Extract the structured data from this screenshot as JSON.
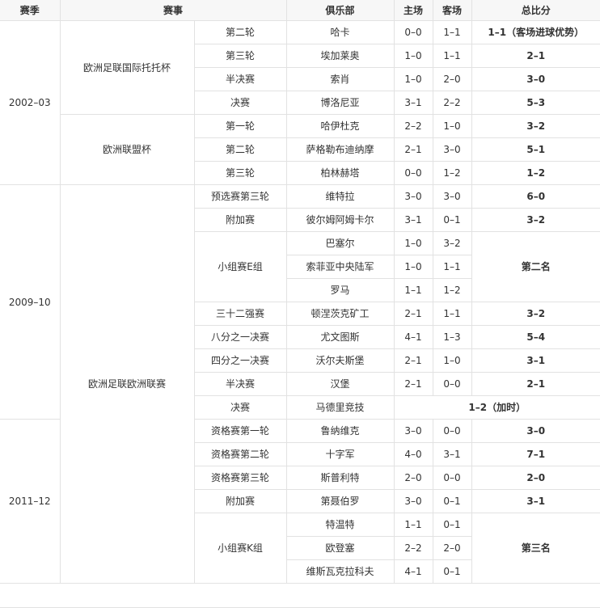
{
  "headers": {
    "season": "赛季",
    "competition": "赛事",
    "club": "俱乐部",
    "home": "主场",
    "away": "客场",
    "aggregate": "总比分"
  },
  "ties": [
    {
      "season": "2002–03",
      "competition": "欧洲足联国际托托杯",
      "round": "第二轮",
      "matches": [
        {
          "club": "哈卡",
          "home": "0–0",
          "away": "1–1"
        }
      ],
      "aggregate": "1–1（客场进球优势）"
    },
    {
      "season": "2002–03",
      "competition": "欧洲足联国际托托杯",
      "round": "第三轮",
      "matches": [
        {
          "club": "埃加莱奥",
          "home": "1–0",
          "away": "1–1"
        }
      ],
      "aggregate": "2–1"
    },
    {
      "season": "2002–03",
      "competition": "欧洲足联国际托托杯",
      "round": "半决赛",
      "matches": [
        {
          "club": "索肖",
          "home": "1–0",
          "away": "2–0"
        }
      ],
      "aggregate": "3–0"
    },
    {
      "season": "2002–03",
      "competition": "欧洲足联国际托托杯",
      "round": "决赛",
      "matches": [
        {
          "club": "博洛尼亚",
          "home": "3–1",
          "away": "2–2"
        }
      ],
      "aggregate": "5–3"
    },
    {
      "season": "2002–03",
      "competition": "欧洲联盟杯",
      "round": "第一轮",
      "matches": [
        {
          "club": "哈伊杜克",
          "home": "2–2",
          "away": "1–0"
        }
      ],
      "aggregate": "3–2"
    },
    {
      "season": "2002–03",
      "competition": "欧洲联盟杯",
      "round": "第二轮",
      "matches": [
        {
          "club": "萨格勒布迪纳摩",
          "home": "2–1",
          "away": "3–0"
        }
      ],
      "aggregate": "5–1"
    },
    {
      "season": "2002–03",
      "competition": "欧洲联盟杯",
      "round": "第三轮",
      "matches": [
        {
          "club": "柏林赫塔",
          "home": "0–0",
          "away": "1–2"
        }
      ],
      "aggregate": "1–2"
    },
    {
      "season": "2009–10",
      "competition": "欧洲足联欧洲联赛",
      "round": "预选赛第三轮",
      "matches": [
        {
          "club": "维特拉",
          "home": "3–0",
          "away": "3–0"
        }
      ],
      "aggregate": "6–0"
    },
    {
      "season": "2009–10",
      "competition": "欧洲足联欧洲联赛",
      "round": "附加赛",
      "matches": [
        {
          "club": "彼尔姆阿姆卡尔",
          "home": "3–1",
          "away": "0–1"
        }
      ],
      "aggregate": "3–2"
    },
    {
      "season": "2009–10",
      "competition": "欧洲足联欧洲联赛",
      "round": "小组赛E组",
      "matches": [
        {
          "club": "巴塞尔",
          "home": "1–0",
          "away": "3–2"
        },
        {
          "club": "索菲亚中央陆军",
          "home": "1–0",
          "away": "1–1"
        },
        {
          "club": "罗马",
          "home": "1–1",
          "away": "1–2"
        }
      ],
      "aggregate": "第二名"
    },
    {
      "season": "2009–10",
      "competition": "欧洲足联欧洲联赛",
      "round": "三十二强赛",
      "matches": [
        {
          "club": "顿涅茨克矿工",
          "home": "2–1",
          "away": "1–1"
        }
      ],
      "aggregate": "3–2"
    },
    {
      "season": "2009–10",
      "competition": "欧洲足联欧洲联赛",
      "round": "八分之一决赛",
      "matches": [
        {
          "club": "尤文图斯",
          "home": "4–1",
          "away": "1–3"
        }
      ],
      "aggregate": "5–4"
    },
    {
      "season": "2009–10",
      "competition": "欧洲足联欧洲联赛",
      "round": "四分之一决赛",
      "matches": [
        {
          "club": "沃尔夫斯堡",
          "home": "2–1",
          "away": "1–0"
        }
      ],
      "aggregate": "3–1"
    },
    {
      "season": "2009–10",
      "competition": "欧洲足联欧洲联赛",
      "round": "半决赛",
      "matches": [
        {
          "club": "汉堡",
          "home": "2–1",
          "away": "0–0"
        }
      ],
      "aggregate": "2–1"
    },
    {
      "season": "2009–10",
      "competition": "欧洲足联欧洲联赛",
      "round": "决赛",
      "matches": [
        {
          "club": "马德里竞技",
          "result": "1–2（加时）"
        }
      ]
    },
    {
      "season": "2011–12",
      "competition": "欧洲足联欧洲联赛",
      "round": "资格赛第一轮",
      "matches": [
        {
          "club": "鲁纳维克",
          "home": "3–0",
          "away": "0–0"
        }
      ],
      "aggregate": "3–0"
    },
    {
      "season": "2011–12",
      "competition": "欧洲足联欧洲联赛",
      "round": "资格赛第二轮",
      "matches": [
        {
          "club": "十字军",
          "home": "4–0",
          "away": "3–1"
        }
      ],
      "aggregate": "7–1"
    },
    {
      "season": "2011–12",
      "competition": "欧洲足联欧洲联赛",
      "round": "资格赛第三轮",
      "matches": [
        {
          "club": "斯普利特",
          "home": "2–0",
          "away": "0–0"
        }
      ],
      "aggregate": "2–0"
    },
    {
      "season": "2011–12",
      "competition": "欧洲足联欧洲联赛",
      "round": "附加赛",
      "matches": [
        {
          "club": "第聂伯罗",
          "home": "3–0",
          "away": "0–1"
        }
      ],
      "aggregate": "3–1"
    },
    {
      "season": "2011–12",
      "competition": "欧洲足联欧洲联赛",
      "round": "小组赛K组",
      "matches": [
        {
          "club": "特温特",
          "home": "1–1",
          "away": "0–1"
        },
        {
          "club": "欧登塞",
          "home": "2–2",
          "away": "2–0"
        },
        {
          "club": "维斯瓦克拉科夫",
          "home": "4–1",
          "away": "0–1"
        }
      ],
      "aggregate": "第三名"
    }
  ]
}
